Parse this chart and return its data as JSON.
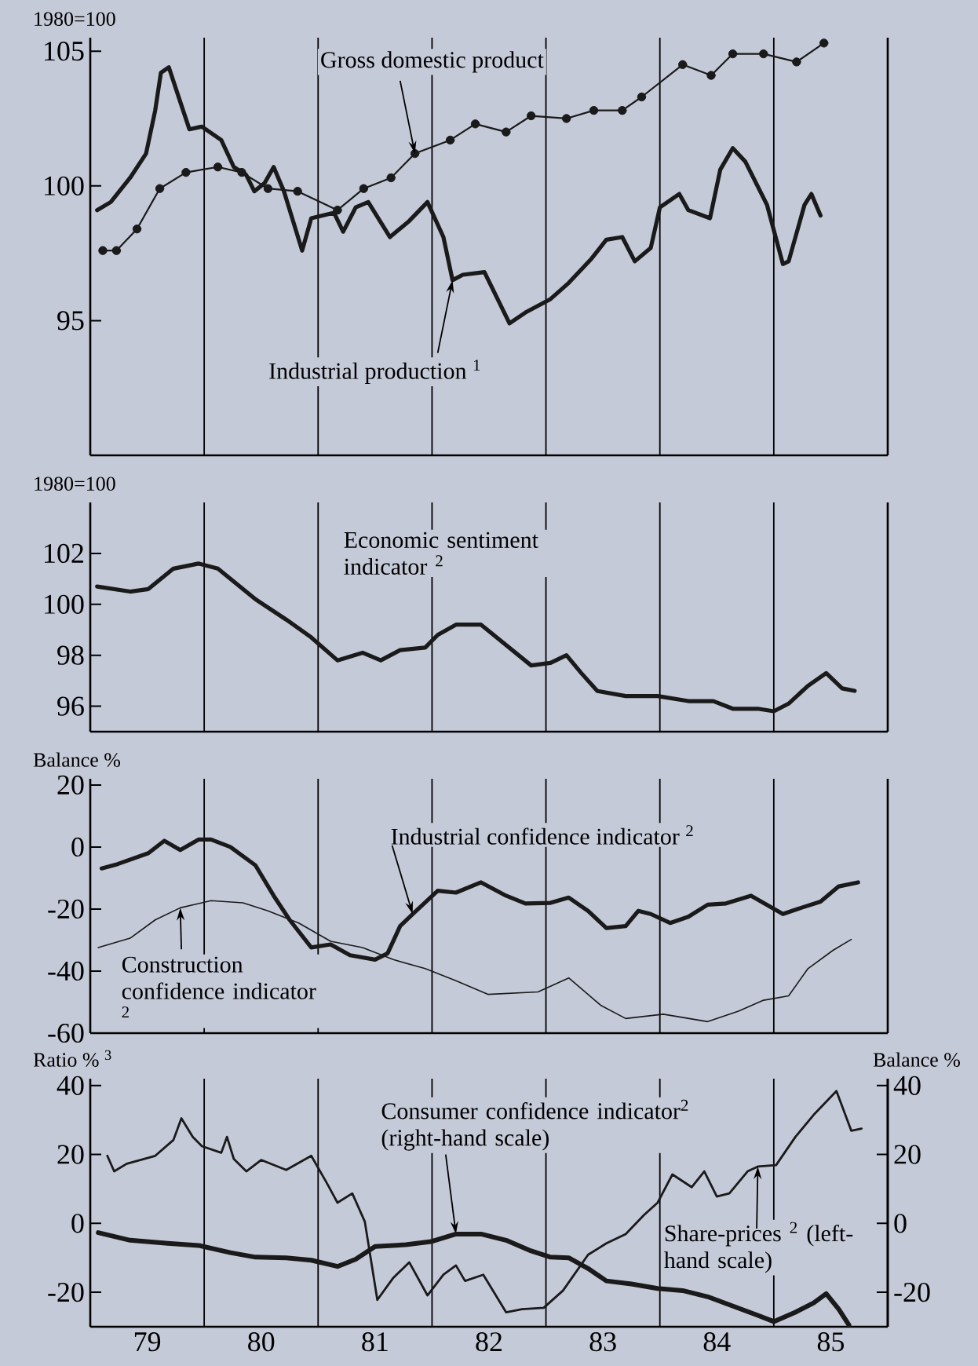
{
  "chart_data": [
    {
      "type": "line",
      "ylabel": "1980=100",
      "xlim": [
        78.5,
        85.5
      ],
      "ylim": [
        90,
        105.5
      ],
      "xticks": [
        79,
        80,
        81,
        82,
        83,
        84,
        85
      ],
      "yticks": [
        95,
        100,
        105
      ],
      "tick_labels": "y",
      "ref_lines": [
        {
          "axis": "x",
          "value": 79.5
        },
        {
          "axis": "x",
          "value": 80.5
        },
        {
          "axis": "x",
          "value": 81.5
        },
        {
          "axis": "x",
          "value": 82.5
        },
        {
          "axis": "x",
          "value": 83.5
        },
        {
          "axis": "x",
          "value": 84.5
        }
      ],
      "series": [
        {
          "name": "Gross domestic product",
          "color": "#1a1a1a",
          "marker": "circle",
          "x": [
            78.61,
            78.73,
            78.91,
            79.11,
            79.34,
            79.62,
            79.83,
            80.06,
            80.32,
            80.67,
            80.9,
            81.14,
            81.35,
            81.66,
            81.88,
            82.15,
            82.37,
            82.68,
            82.92,
            83.17,
            83.34,
            83.7,
            83.95,
            84.14,
            84.41,
            84.7,
            84.94
          ],
          "values": [
            97.6,
            97.6,
            98.4,
            99.9,
            100.5,
            100.7,
            100.5,
            99.9,
            99.8,
            99.1,
            99.9,
            100.3,
            101.2,
            101.7,
            102.3,
            102.0,
            102.6,
            102.5,
            102.8,
            102.8,
            103.3,
            104.5,
            104.1,
            104.9,
            104.9,
            104.6,
            105.3
          ]
        },
        {
          "name": "Industrial production $^{1}$",
          "color": "#1a1a1a",
          "x": [
            78.56,
            78.68,
            78.85,
            78.99,
            79.07,
            79.12,
            79.19,
            79.26,
            79.37,
            79.48,
            79.65,
            79.76,
            79.87,
            79.94,
            80.03,
            80.11,
            80.2,
            80.36,
            80.44,
            80.64,
            80.72,
            80.83,
            80.94,
            81.13,
            81.3,
            81.46,
            81.6,
            81.68,
            81.77,
            81.96,
            82.18,
            82.32,
            82.54,
            82.7,
            82.9,
            83.03,
            83.17,
            83.28,
            83.42,
            83.5,
            83.67,
            83.75,
            83.94,
            84.03,
            84.14,
            84.25,
            84.44,
            84.58,
            84.63,
            84.77,
            84.83,
            84.91
          ],
          "values": [
            99.1,
            99.4,
            100.3,
            101.2,
            102.8,
            104.2,
            104.4,
            103.5,
            102.1,
            102.2,
            101.7,
            100.7,
            100.4,
            99.8,
            100.1,
            100.7,
            99.8,
            97.6,
            98.8,
            99.0,
            98.3,
            99.2,
            99.4,
            98.1,
            98.7,
            99.4,
            98.1,
            96.5,
            96.7,
            96.8,
            94.9,
            95.3,
            95.8,
            96.4,
            97.3,
            98.0,
            98.1,
            97.2,
            97.7,
            99.2,
            99.7,
            99.1,
            98.8,
            100.6,
            101.4,
            100.9,
            99.3,
            97.1,
            97.2,
            99.3,
            99.7,
            98.9
          ]
        }
      ]
    },
    {
      "type": "line",
      "ylabel": "1980=100",
      "xlim": [
        78.5,
        85.5
      ],
      "ylim": [
        95,
        104
      ],
      "xticks": [
        79,
        80,
        81,
        82,
        83,
        84,
        85
      ],
      "yticks": [
        96,
        98,
        100,
        102
      ],
      "tick_labels": "y",
      "ref_lines": [
        {
          "axis": "x",
          "value": 79.5
        },
        {
          "axis": "x",
          "value": 80.5
        },
        {
          "axis": "x",
          "value": 81.5
        },
        {
          "axis": "x",
          "value": 82.5
        },
        {
          "axis": "x",
          "value": 83.5
        },
        {
          "axis": "x",
          "value": 84.5
        }
      ],
      "series": [
        {
          "name": "Economic sentiment indicator $^{2}$",
          "color": "#1a1a1a",
          "x": [
            78.56,
            78.85,
            79.01,
            79.23,
            79.45,
            79.62,
            79.95,
            80.22,
            80.44,
            80.67,
            80.89,
            81.05,
            81.22,
            81.44,
            81.55,
            81.71,
            81.93,
            82.15,
            82.37,
            82.54,
            82.68,
            82.81,
            82.95,
            83.2,
            83.48,
            83.75,
            83.97,
            84.14,
            84.36,
            84.5,
            84.63,
            84.8,
            84.96,
            85.1,
            85.21
          ],
          "values": [
            100.7,
            100.5,
            100.6,
            101.4,
            101.6,
            101.4,
            100.2,
            99.4,
            98.7,
            97.8,
            98.1,
            97.8,
            98.2,
            98.3,
            98.8,
            99.2,
            99.2,
            98.4,
            97.6,
            97.7,
            98.0,
            97.3,
            96.6,
            96.4,
            96.4,
            96.2,
            96.2,
            95.9,
            95.9,
            95.8,
            96.1,
            96.8,
            97.3,
            96.7,
            96.6
          ]
        }
      ]
    },
    {
      "type": "line",
      "ylabel": "Balance %",
      "xlim": [
        78.5,
        85.5
      ],
      "ylim": [
        -60,
        22
      ],
      "xticks": [
        79,
        80,
        81,
        82,
        83,
        84,
        85
      ],
      "yticks": [
        -60,
        -40,
        -20,
        0,
        20
      ],
      "tick_labels": "y",
      "ref_lines": [
        {
          "axis": "x",
          "value": 79.5
        },
        {
          "axis": "x",
          "value": 80.5
        },
        {
          "axis": "x",
          "value": 81.5
        },
        {
          "axis": "x",
          "value": 82.5
        },
        {
          "axis": "x",
          "value": 83.5
        },
        {
          "axis": "x",
          "value": 84.5
        }
      ],
      "series": [
        {
          "name": "Industrial confidence indicator $^{2}$",
          "color": "#1a1a1a",
          "x": [
            78.6,
            78.74,
            79.01,
            79.15,
            79.29,
            79.45,
            79.56,
            79.73,
            79.95,
            80.11,
            80.25,
            80.44,
            80.61,
            80.78,
            81.0,
            81.11,
            81.22,
            81.33,
            81.55,
            81.71,
            81.93,
            82.15,
            82.32,
            82.54,
            82.7,
            82.87,
            83.03,
            83.2,
            83.31,
            83.42,
            83.59,
            83.75,
            83.92,
            84.08,
            84.3,
            84.58,
            84.74,
            84.91,
            85.07,
            85.24
          ],
          "values": [
            -6.9,
            -5.5,
            -2.0,
            2.0,
            -1.0,
            2.4,
            2.4,
            0,
            -5.9,
            -15.7,
            -23.5,
            -32.4,
            -31.4,
            -34.9,
            -36.3,
            -34.3,
            -25.5,
            -21.6,
            -14.1,
            -14.7,
            -11.4,
            -15.7,
            -18.2,
            -18.0,
            -16.3,
            -20.6,
            -26.1,
            -25.5,
            -20.6,
            -21.6,
            -24.5,
            -22.5,
            -18.6,
            -18.2,
            -15.7,
            -21.6,
            -19.6,
            -17.6,
            -12.7,
            -11.4
          ]
        },
        {
          "name": "Construction confidence indicator $^{2}$",
          "color": "#1a1a1a",
          "x": [
            78.57,
            78.85,
            79.07,
            79.29,
            79.56,
            79.84,
            80.06,
            80.33,
            80.61,
            80.89,
            81.16,
            81.44,
            81.71,
            81.99,
            82.43,
            82.7,
            82.98,
            83.2,
            83.53,
            83.92,
            84.19,
            84.41,
            84.63,
            84.8,
            85.02,
            85.18
          ],
          "values": [
            -32.4,
            -29.4,
            -23.5,
            -19.6,
            -17.3,
            -18.0,
            -20.6,
            -24.5,
            -30.4,
            -32.4,
            -36.3,
            -39.2,
            -43.1,
            -47.5,
            -46.7,
            -42.2,
            -51.0,
            -55.3,
            -53.9,
            -56.3,
            -52.9,
            -49.4,
            -48.0,
            -39.2,
            -33.3,
            -29.8
          ]
        }
      ]
    },
    {
      "type": "line",
      "ylabel": "Ratio % $^{3}$",
      "y2label": "Balance %",
      "xlim": [
        78.5,
        85.5
      ],
      "ylim": [
        -30,
        42
      ],
      "xticks": [
        79,
        80,
        81,
        82,
        83,
        84,
        85
      ],
      "yticks": [
        -20,
        0,
        20,
        40
      ],
      "y2lim": [
        -30,
        42
      ],
      "y2ticks": [
        -20,
        0,
        20,
        40
      ],
      "ref_lines": [
        {
          "axis": "x",
          "value": 79.5
        },
        {
          "axis": "x",
          "value": 80.5
        },
        {
          "axis": "x",
          "value": 81.5
        },
        {
          "axis": "x",
          "value": 82.5
        },
        {
          "axis": "x",
          "value": 83.5
        },
        {
          "axis": "x",
          "value": 84.5
        }
      ],
      "series": [
        {
          "name": "Consumer confidence indicator$^{2}$ (right-hand scale)",
          "color": "#1a1a1a",
          "axis": "y2",
          "x": [
            78.57,
            78.85,
            79.18,
            79.45,
            79.73,
            79.95,
            80.22,
            80.44,
            80.67,
            80.83,
            81.0,
            81.27,
            81.49,
            81.71,
            81.93,
            82.15,
            82.37,
            82.54,
            82.7,
            82.87,
            83.03,
            83.25,
            83.48,
            83.7,
            83.92,
            84.14,
            84.36,
            84.5,
            84.69,
            84.85,
            84.96,
            85.07,
            85.16
          ],
          "values": [
            -2.7,
            -4.9,
            -5.8,
            -6.4,
            -8.5,
            -9.8,
            -10.0,
            -10.7,
            -12.5,
            -10.4,
            -6.7,
            -6.2,
            -5.3,
            -3.1,
            -3.1,
            -4.9,
            -8.0,
            -9.8,
            -10.0,
            -13.1,
            -16.7,
            -17.6,
            -18.9,
            -19.5,
            -21.3,
            -24.0,
            -26.7,
            -28.5,
            -25.8,
            -23.1,
            -20.4,
            -24.9,
            -29.5
          ]
        },
        {
          "name": "Share-prices $^{2}$ (left-hand scale)",
          "color": "#1a1a1a",
          "x": [
            78.65,
            78.71,
            78.82,
            79.07,
            79.23,
            79.3,
            79.4,
            79.48,
            79.65,
            79.7,
            79.76,
            79.87,
            80.0,
            80.22,
            80.44,
            80.58,
            80.67,
            80.8,
            80.91,
            81.02,
            81.16,
            81.3,
            81.46,
            81.6,
            81.71,
            81.79,
            81.95,
            82.15,
            82.29,
            82.48,
            82.65,
            82.87,
            83.03,
            83.2,
            83.36,
            83.48,
            83.61,
            83.78,
            83.89,
            84.0,
            84.11,
            84.27,
            84.36,
            84.52,
            84.69,
            84.85,
            85.05,
            85.18,
            85.27
          ],
          "values": [
            19.6,
            15.1,
            17.3,
            19.6,
            24.2,
            30.5,
            25.1,
            22.4,
            20.5,
            25.1,
            18.7,
            15.1,
            18.4,
            15.5,
            19.6,
            11.5,
            6.0,
            8.7,
            0.5,
            -22.2,
            -15.8,
            -11.3,
            -20.9,
            -14.9,
            -12.2,
            -16.7,
            -14.9,
            -25.8,
            -24.9,
            -24.5,
            -19.5,
            -9.1,
            -5.8,
            -3.1,
            2.4,
            6.0,
            14.2,
            10.5,
            15.1,
            7.8,
            8.7,
            15.1,
            16.5,
            16.9,
            25.1,
            31.5,
            38.4,
            26.9,
            27.5
          ]
        }
      ]
    }
  ]
}
